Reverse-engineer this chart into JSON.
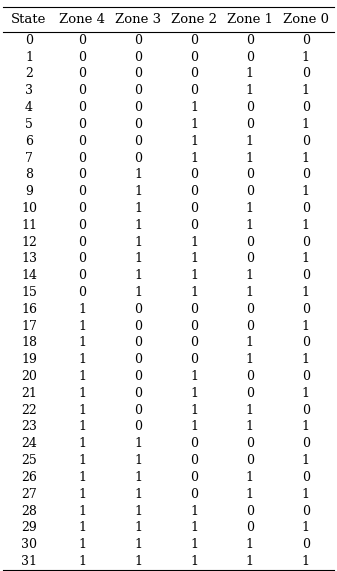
{
  "columns": [
    "State",
    "Zone 4",
    "Zone 3",
    "Zone 2",
    "Zone 1",
    "Zone 0"
  ],
  "rows": [
    [
      0,
      0,
      0,
      0,
      0,
      0
    ],
    [
      1,
      0,
      0,
      0,
      0,
      1
    ],
    [
      2,
      0,
      0,
      0,
      1,
      0
    ],
    [
      3,
      0,
      0,
      0,
      1,
      1
    ],
    [
      4,
      0,
      0,
      1,
      0,
      0
    ],
    [
      5,
      0,
      0,
      1,
      0,
      1
    ],
    [
      6,
      0,
      0,
      1,
      1,
      0
    ],
    [
      7,
      0,
      0,
      1,
      1,
      1
    ],
    [
      8,
      0,
      1,
      0,
      0,
      0
    ],
    [
      9,
      0,
      1,
      0,
      0,
      1
    ],
    [
      10,
      0,
      1,
      0,
      1,
      0
    ],
    [
      11,
      0,
      1,
      0,
      1,
      1
    ],
    [
      12,
      0,
      1,
      1,
      0,
      0
    ],
    [
      13,
      0,
      1,
      1,
      0,
      1
    ],
    [
      14,
      0,
      1,
      1,
      1,
      0
    ],
    [
      15,
      0,
      1,
      1,
      1,
      1
    ],
    [
      16,
      1,
      0,
      0,
      0,
      0
    ],
    [
      17,
      1,
      0,
      0,
      0,
      1
    ],
    [
      18,
      1,
      0,
      0,
      1,
      0
    ],
    [
      19,
      1,
      0,
      0,
      1,
      1
    ],
    [
      20,
      1,
      0,
      1,
      0,
      0
    ],
    [
      21,
      1,
      0,
      1,
      0,
      1
    ],
    [
      22,
      1,
      0,
      1,
      1,
      0
    ],
    [
      23,
      1,
      0,
      1,
      1,
      1
    ],
    [
      24,
      1,
      1,
      0,
      0,
      0
    ],
    [
      25,
      1,
      1,
      0,
      0,
      1
    ],
    [
      26,
      1,
      1,
      0,
      1,
      0
    ],
    [
      27,
      1,
      1,
      0,
      1,
      1
    ],
    [
      28,
      1,
      1,
      1,
      0,
      0
    ],
    [
      29,
      1,
      1,
      1,
      0,
      1
    ],
    [
      30,
      1,
      1,
      1,
      1,
      0
    ],
    [
      31,
      1,
      1,
      1,
      1,
      1
    ]
  ],
  "header_line_color": "#000000",
  "text_color": "#000000",
  "bg_color": "#ffffff",
  "header_fontsize": 9.5,
  "cell_fontsize": 9.0,
  "fig_width": 3.37,
  "fig_height": 5.71,
  "dpi": 100
}
